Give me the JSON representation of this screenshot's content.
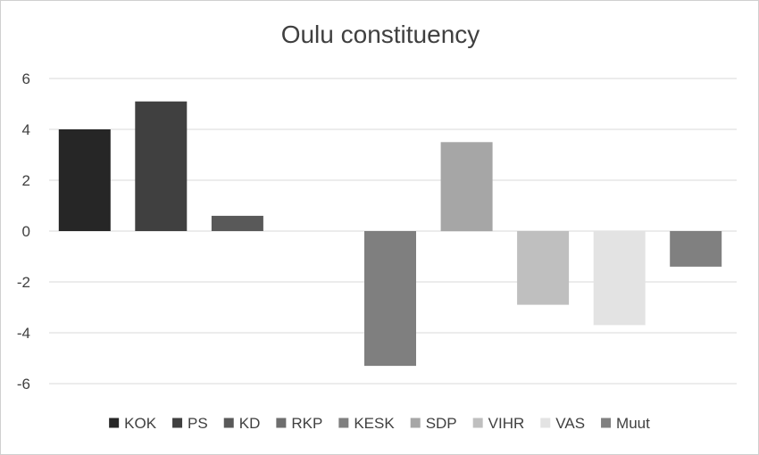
{
  "chart_data": {
    "type": "bar",
    "title": "Oulu constituency",
    "xlabel": "",
    "ylabel": "",
    "ylim": [
      -6,
      6
    ],
    "yticks": [
      6,
      4,
      2,
      0,
      -2,
      -4,
      -6
    ],
    "grid": true,
    "legend_position": "bottom",
    "categories": [
      "KOK",
      "PS",
      "KD",
      "RKP",
      "KESK",
      "SDP",
      "VIHR",
      "VAS",
      "Muut"
    ],
    "series": [
      {
        "name": "KOK",
        "values": [
          4.0,
          null,
          null,
          null,
          null,
          null,
          null,
          null,
          null
        ],
        "color": "#262626"
      },
      {
        "name": "PS",
        "values": [
          null,
          5.1,
          null,
          null,
          null,
          null,
          null,
          null,
          null
        ],
        "color": "#404040"
      },
      {
        "name": "KD",
        "values": [
          null,
          null,
          0.6,
          null,
          null,
          null,
          null,
          null,
          null
        ],
        "color": "#595959"
      },
      {
        "name": "RKP",
        "values": [
          null,
          null,
          null,
          0,
          null,
          null,
          null,
          null,
          null
        ],
        "color": "#6e6e6e"
      },
      {
        "name": "KESK",
        "values": [
          null,
          null,
          null,
          null,
          -5.3,
          null,
          null,
          null,
          null
        ],
        "color": "#7f7f7f"
      },
      {
        "name": "SDP",
        "values": [
          null,
          null,
          null,
          null,
          null,
          3.5,
          null,
          null,
          null
        ],
        "color": "#a6a6a6"
      },
      {
        "name": "VIHR",
        "values": [
          null,
          null,
          null,
          null,
          null,
          null,
          -2.9,
          null,
          null
        ],
        "color": "#bfbfbf"
      },
      {
        "name": "VAS",
        "values": [
          null,
          null,
          null,
          null,
          null,
          null,
          null,
          -3.7,
          null
        ],
        "color": "#e3e3e3"
      },
      {
        "name": "Muut",
        "values": [
          null,
          null,
          null,
          null,
          null,
          null,
          null,
          null,
          -1.4
        ],
        "color": "#808080"
      }
    ]
  }
}
